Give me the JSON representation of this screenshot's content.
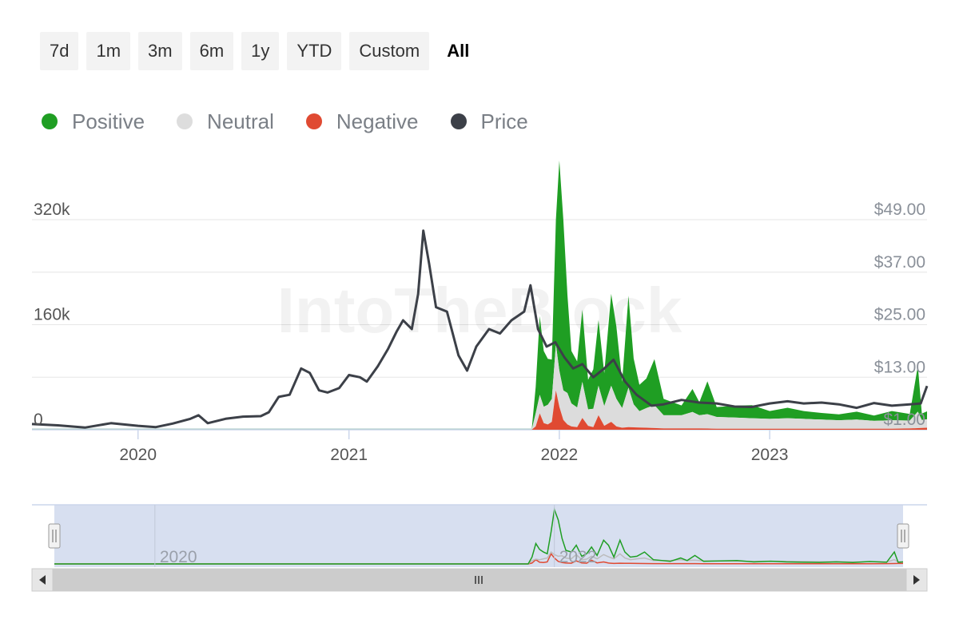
{
  "range_buttons": [
    {
      "label": "7d",
      "active": false
    },
    {
      "label": "1m",
      "active": false
    },
    {
      "label": "3m",
      "active": false
    },
    {
      "label": "6m",
      "active": false
    },
    {
      "label": "1y",
      "active": false
    },
    {
      "label": "YTD",
      "active": false
    },
    {
      "label": "Custom",
      "active": false
    },
    {
      "label": "All",
      "active": true
    }
  ],
  "legend": [
    {
      "label": "Positive",
      "color": "#1f9e23"
    },
    {
      "label": "Neutral",
      "color": "#dddddd"
    },
    {
      "label": "Negative",
      "color": "#e04a32"
    },
    {
      "label": "Price",
      "color": "#3c4048"
    }
  ],
  "watermark": "IntoTheBlock",
  "colors": {
    "positive": "#1f9e23",
    "neutral": "#dcdcdc",
    "negative": "#e04a32",
    "price": "#3c4048",
    "grid": "#e6e6e6",
    "navigator_bg": "#d3dbee"
  },
  "chart_data": {
    "type": "area",
    "x_range": [
      "2019-07-01",
      "2023-10-01"
    ],
    "left_axis": {
      "ticks": [
        0,
        160000,
        320000
      ],
      "tick_labels": [
        "0",
        "160k",
        "320k"
      ],
      "ylim": [
        0,
        320000
      ]
    },
    "right_axis": {
      "ticks": [
        1,
        13,
        25,
        37,
        49
      ],
      "tick_labels": [
        "$1.00",
        "$13.00",
        "$25.00",
        "$37.00",
        "$49.00"
      ],
      "ylim": [
        1,
        49
      ]
    },
    "x_ticks": [
      "2020",
      "2021",
      "2022",
      "2023"
    ],
    "grid": true,
    "legend_position": "top-left",
    "series": [
      {
        "name": "Positive",
        "axis": "left",
        "stacked": true,
        "points": [
          [
            "2019-07-01",
            0
          ],
          [
            "2021-11-14",
            0
          ],
          [
            "2021-11-21",
            40000
          ],
          [
            "2021-11-28",
            120000
          ],
          [
            "2021-12-05",
            85000
          ],
          [
            "2021-12-12",
            70000
          ],
          [
            "2021-12-19",
            60000
          ],
          [
            "2021-12-26",
            190000
          ],
          [
            "2022-01-01",
            320000
          ],
          [
            "2022-01-08",
            260000
          ],
          [
            "2022-01-15",
            150000
          ],
          [
            "2022-01-22",
            80000
          ],
          [
            "2022-02-01",
            70000
          ],
          [
            "2022-02-10",
            110000
          ],
          [
            "2022-02-20",
            45000
          ],
          [
            "2022-03-01",
            60000
          ],
          [
            "2022-03-10",
            100000
          ],
          [
            "2022-03-20",
            50000
          ],
          [
            "2022-04-01",
            140000
          ],
          [
            "2022-04-10",
            110000
          ],
          [
            "2022-04-20",
            40000
          ],
          [
            "2022-05-01",
            140000
          ],
          [
            "2022-05-10",
            70000
          ],
          [
            "2022-05-20",
            40000
          ],
          [
            "2022-06-01",
            45000
          ],
          [
            "2022-06-15",
            70000
          ],
          [
            "2022-07-01",
            25000
          ],
          [
            "2022-08-01",
            15000
          ],
          [
            "2022-08-20",
            35000
          ],
          [
            "2022-09-01",
            20000
          ],
          [
            "2022-09-15",
            50000
          ],
          [
            "2022-10-01",
            15000
          ],
          [
            "2022-11-01",
            18000
          ],
          [
            "2022-12-01",
            20000
          ],
          [
            "2023-01-01",
            12000
          ],
          [
            "2023-02-01",
            16000
          ],
          [
            "2023-03-01",
            12000
          ],
          [
            "2023-04-01",
            10000
          ],
          [
            "2023-05-01",
            9000
          ],
          [
            "2023-06-01",
            12000
          ],
          [
            "2023-07-01",
            8000
          ],
          [
            "2023-08-01",
            14000
          ],
          [
            "2023-09-01",
            10000
          ],
          [
            "2023-09-15",
            70000
          ],
          [
            "2023-09-22",
            10000
          ],
          [
            "2023-10-01",
            12000
          ]
        ]
      },
      {
        "name": "Neutral",
        "axis": "left",
        "stacked": true,
        "points": [
          [
            "2019-07-01",
            0
          ],
          [
            "2021-11-14",
            0
          ],
          [
            "2021-11-21",
            20000
          ],
          [
            "2021-11-28",
            28000
          ],
          [
            "2021-12-05",
            25000
          ],
          [
            "2021-12-12",
            30000
          ],
          [
            "2021-12-19",
            35000
          ],
          [
            "2021-12-26",
            70000
          ],
          [
            "2022-01-01",
            55000
          ],
          [
            "2022-01-08",
            45000
          ],
          [
            "2022-01-15",
            48000
          ],
          [
            "2022-01-22",
            35000
          ],
          [
            "2022-02-01",
            30000
          ],
          [
            "2022-02-10",
            55000
          ],
          [
            "2022-02-20",
            25000
          ],
          [
            "2022-03-01",
            28000
          ],
          [
            "2022-03-10",
            45000
          ],
          [
            "2022-03-20",
            30000
          ],
          [
            "2022-04-01",
            55000
          ],
          [
            "2022-04-10",
            42000
          ],
          [
            "2022-04-20",
            30000
          ],
          [
            "2022-05-01",
            60000
          ],
          [
            "2022-05-10",
            35000
          ],
          [
            "2022-05-20",
            25000
          ],
          [
            "2022-06-01",
            30000
          ],
          [
            "2022-06-15",
            35000
          ],
          [
            "2022-07-01",
            20000
          ],
          [
            "2022-08-01",
            20000
          ],
          [
            "2022-08-20",
            25000
          ],
          [
            "2022-09-01",
            20000
          ],
          [
            "2022-09-15",
            22000
          ],
          [
            "2022-10-01",
            18000
          ],
          [
            "2022-11-01",
            17000
          ],
          [
            "2022-12-01",
            16000
          ],
          [
            "2023-01-01",
            15000
          ],
          [
            "2023-02-01",
            16000
          ],
          [
            "2023-03-01",
            15000
          ],
          [
            "2023-04-01",
            14000
          ],
          [
            "2023-05-01",
            13000
          ],
          [
            "2023-06-01",
            14000
          ],
          [
            "2023-07-01",
            12000
          ],
          [
            "2023-08-01",
            13000
          ],
          [
            "2023-09-01",
            12000
          ],
          [
            "2023-09-15",
            25000
          ],
          [
            "2023-09-22",
            12000
          ],
          [
            "2023-10-01",
            13000
          ]
        ]
      },
      {
        "name": "Negative",
        "axis": "left",
        "stacked": true,
        "points": [
          [
            "2019-07-01",
            0
          ],
          [
            "2021-11-14",
            0
          ],
          [
            "2021-11-21",
            5000
          ],
          [
            "2021-11-28",
            25000
          ],
          [
            "2021-12-05",
            10000
          ],
          [
            "2021-12-12",
            8000
          ],
          [
            "2021-12-19",
            12000
          ],
          [
            "2021-12-26",
            60000
          ],
          [
            "2022-01-01",
            35000
          ],
          [
            "2022-01-08",
            15000
          ],
          [
            "2022-01-15",
            8000
          ],
          [
            "2022-01-22",
            5000
          ],
          [
            "2022-02-01",
            4000
          ],
          [
            "2022-02-10",
            18000
          ],
          [
            "2022-02-20",
            6000
          ],
          [
            "2022-03-01",
            4000
          ],
          [
            "2022-03-10",
            22000
          ],
          [
            "2022-03-20",
            6000
          ],
          [
            "2022-04-01",
            12000
          ],
          [
            "2022-04-10",
            5000
          ],
          [
            "2022-04-20",
            3000
          ],
          [
            "2022-05-01",
            4000
          ],
          [
            "2022-06-01",
            3000
          ],
          [
            "2022-07-01",
            2000
          ],
          [
            "2022-08-01",
            2000
          ],
          [
            "2022-09-01",
            2000
          ],
          [
            "2022-10-01",
            1500
          ],
          [
            "2022-12-01",
            1500
          ],
          [
            "2023-02-01",
            1500
          ],
          [
            "2023-04-01",
            1500
          ],
          [
            "2023-06-01",
            1500
          ],
          [
            "2023-08-01",
            1500
          ],
          [
            "2023-09-01",
            2000
          ],
          [
            "2023-10-01",
            3000
          ]
        ]
      },
      {
        "name": "Price",
        "axis": "right",
        "stacked": false,
        "points": [
          [
            "2019-07-01",
            2.3
          ],
          [
            "2019-08-15",
            2.0
          ],
          [
            "2019-10-01",
            1.5
          ],
          [
            "2019-11-15",
            2.5
          ],
          [
            "2020-01-01",
            1.9
          ],
          [
            "2020-02-01",
            1.6
          ],
          [
            "2020-03-01",
            2.4
          ],
          [
            "2020-04-01",
            3.5
          ],
          [
            "2020-04-15",
            4.3
          ],
          [
            "2020-05-01",
            2.5
          ],
          [
            "2020-06-01",
            3.5
          ],
          [
            "2020-07-01",
            4.0
          ],
          [
            "2020-08-01",
            4.1
          ],
          [
            "2020-08-15",
            5.0
          ],
          [
            "2020-09-01",
            8.5
          ],
          [
            "2020-09-20",
            9.0
          ],
          [
            "2020-10-10",
            15.0
          ],
          [
            "2020-10-25",
            14.0
          ],
          [
            "2020-11-10",
            10.0
          ],
          [
            "2020-11-25",
            9.5
          ],
          [
            "2020-12-15",
            10.5
          ],
          [
            "2021-01-01",
            13.5
          ],
          [
            "2021-01-20",
            13.0
          ],
          [
            "2021-02-01",
            12.0
          ],
          [
            "2021-02-20",
            15.5
          ],
          [
            "2021-03-10",
            19.5
          ],
          [
            "2021-03-25",
            23.5
          ],
          [
            "2021-04-05",
            26.0
          ],
          [
            "2021-04-20",
            24.0
          ],
          [
            "2021-05-01",
            32.0
          ],
          [
            "2021-05-10",
            46.5
          ],
          [
            "2021-05-20",
            39.0
          ],
          [
            "2021-06-01",
            29.0
          ],
          [
            "2021-06-20",
            28.0
          ],
          [
            "2021-07-10",
            18.0
          ],
          [
            "2021-07-25",
            14.5
          ],
          [
            "2021-08-10",
            20.0
          ],
          [
            "2021-09-01",
            24.0
          ],
          [
            "2021-09-20",
            23.0
          ],
          [
            "2021-10-10",
            26.0
          ],
          [
            "2021-11-01",
            28.0
          ],
          [
            "2021-11-12",
            34.0
          ],
          [
            "2021-11-25",
            24.0
          ],
          [
            "2021-12-10",
            20.0
          ],
          [
            "2021-12-25",
            21.0
          ],
          [
            "2022-01-10",
            17.5
          ],
          [
            "2022-01-25",
            15.0
          ],
          [
            "2022-02-10",
            16.0
          ],
          [
            "2022-03-01",
            13.0
          ],
          [
            "2022-03-20",
            15.0
          ],
          [
            "2022-04-05",
            17.0
          ],
          [
            "2022-04-25",
            12.0
          ],
          [
            "2022-05-15",
            9.0
          ],
          [
            "2022-06-10",
            6.5
          ],
          [
            "2022-07-01",
            6.8
          ],
          [
            "2022-08-01",
            7.8
          ],
          [
            "2022-09-01",
            7.2
          ],
          [
            "2022-10-01",
            7.0
          ],
          [
            "2022-11-01",
            6.3
          ],
          [
            "2022-12-01",
            6.2
          ],
          [
            "2023-01-01",
            7.0
          ],
          [
            "2023-02-01",
            7.5
          ],
          [
            "2023-03-01",
            7.0
          ],
          [
            "2023-04-01",
            7.2
          ],
          [
            "2023-05-01",
            6.8
          ],
          [
            "2023-06-01",
            6.0
          ],
          [
            "2023-07-01",
            7.1
          ],
          [
            "2023-08-01",
            6.5
          ],
          [
            "2023-09-01",
            6.8
          ],
          [
            "2023-09-20",
            7.0
          ],
          [
            "2023-10-01",
            11.0
          ]
        ]
      }
    ],
    "navigator": {
      "x_ticks": [
        "2020",
        "2022"
      ]
    }
  }
}
